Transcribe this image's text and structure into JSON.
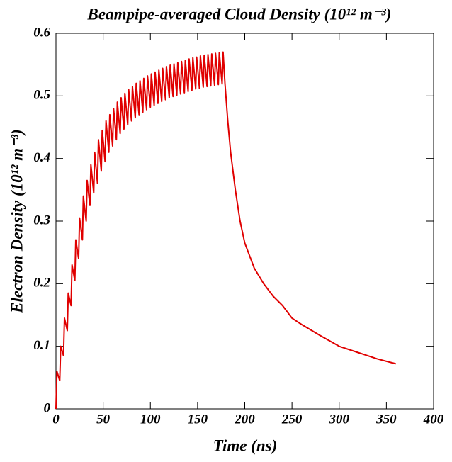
{
  "chart_data": {
    "type": "line",
    "title": "Beampipe-averaged Cloud Density (10¹² m⁻³)",
    "xlabel": "Time (ns)",
    "ylabel": "Electron Density (10¹² m⁻³)",
    "xlim": [
      0,
      400
    ],
    "xticks": [
      0,
      50,
      100,
      150,
      200,
      250,
      300,
      350,
      400
    ],
    "ylim": [
      0,
      0.6
    ],
    "yticks": [
      0,
      0.1,
      0.2,
      0.3,
      0.4,
      0.5,
      0.6
    ],
    "series": [
      {
        "color": "#e00000",
        "x": [
          0,
          1,
          4,
          5,
          8,
          9,
          12,
          13,
          16,
          17,
          20,
          21,
          24,
          25,
          28,
          29,
          32,
          33,
          36,
          37,
          40,
          41,
          44,
          45,
          48,
          49,
          52,
          53,
          56,
          57,
          60,
          61,
          64,
          65,
          68,
          69,
          72,
          73,
          76,
          77,
          80,
          81,
          84,
          85,
          88,
          89,
          92,
          93,
          96,
          97,
          100,
          101,
          104,
          105,
          108,
          109,
          112,
          113,
          116,
          117,
          120,
          121,
          124,
          125,
          128,
          129,
          132,
          133,
          136,
          137,
          140,
          141,
          144,
          145,
          148,
          149,
          152,
          153,
          156,
          157,
          160,
          161,
          164,
          165,
          168,
          169,
          172,
          173,
          176,
          177,
          179,
          180,
          182,
          185,
          190,
          195,
          200,
          210,
          220,
          230,
          240,
          250,
          260,
          280,
          300,
          320,
          340,
          360
        ],
        "values": [
          0,
          0.06,
          0.045,
          0.1,
          0.085,
          0.145,
          0.125,
          0.185,
          0.165,
          0.23,
          0.205,
          0.27,
          0.24,
          0.305,
          0.27,
          0.34,
          0.3,
          0.365,
          0.325,
          0.39,
          0.345,
          0.41,
          0.36,
          0.43,
          0.38,
          0.445,
          0.395,
          0.46,
          0.41,
          0.47,
          0.42,
          0.48,
          0.43,
          0.49,
          0.44,
          0.497,
          0.447,
          0.504,
          0.454,
          0.51,
          0.46,
          0.515,
          0.465,
          0.52,
          0.47,
          0.524,
          0.474,
          0.528,
          0.478,
          0.532,
          0.482,
          0.535,
          0.485,
          0.538,
          0.488,
          0.541,
          0.491,
          0.544,
          0.494,
          0.547,
          0.497,
          0.549,
          0.499,
          0.551,
          0.501,
          0.553,
          0.503,
          0.555,
          0.505,
          0.557,
          0.507,
          0.559,
          0.509,
          0.561,
          0.511,
          0.562,
          0.512,
          0.564,
          0.514,
          0.565,
          0.515,
          0.566,
          0.516,
          0.567,
          0.517,
          0.568,
          0.518,
          0.569,
          0.519,
          0.57,
          0.52,
          0.5,
          0.46,
          0.41,
          0.35,
          0.3,
          0.265,
          0.225,
          0.2,
          0.18,
          0.165,
          0.145,
          0.135,
          0.117,
          0.1,
          0.09,
          0.08,
          0.072
        ]
      }
    ]
  }
}
